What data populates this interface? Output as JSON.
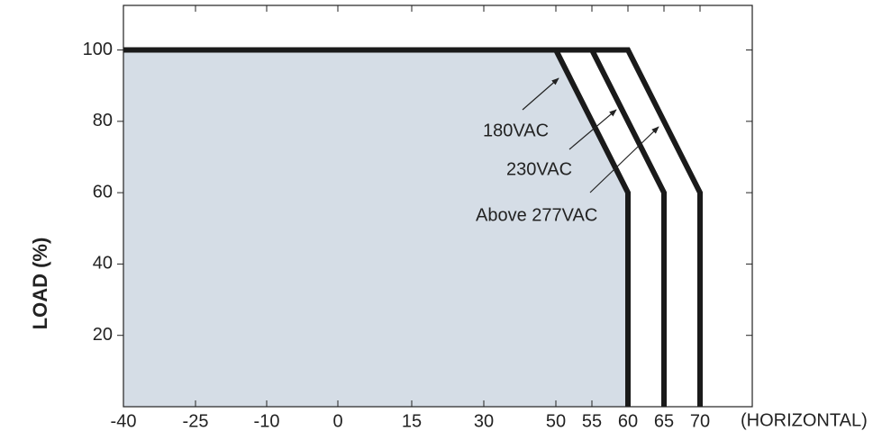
{
  "chart_data": {
    "type": "line",
    "ylabel": "LOAD (%)",
    "xlabel": "(HORIZONTAL)",
    "xlim": [
      -40,
      77.25
    ],
    "ylim": [
      0,
      112.5
    ],
    "xticks": [
      -40,
      -25,
      -10,
      0,
      15,
      30,
      50,
      55,
      60,
      65,
      70
    ],
    "yticks": [
      20,
      40,
      60,
      80,
      100
    ],
    "fill_color": "#d5dde6",
    "series": [
      {
        "name": "180VAC",
        "color": "#1a1a1a",
        "x": [
          -40,
          50,
          60,
          60
        ],
        "values": [
          100,
          100,
          60,
          0
        ]
      },
      {
        "name": "230VAC",
        "color": "#1a1a1a",
        "x": [
          -40,
          55,
          65,
          65
        ],
        "values": [
          100,
          100,
          60,
          0
        ]
      },
      {
        "name": "Above 277VAC",
        "color": "#1a1a1a",
        "x": [
          -40,
          60,
          70,
          70
        ],
        "values": [
          100,
          100,
          60,
          0
        ]
      }
    ]
  }
}
